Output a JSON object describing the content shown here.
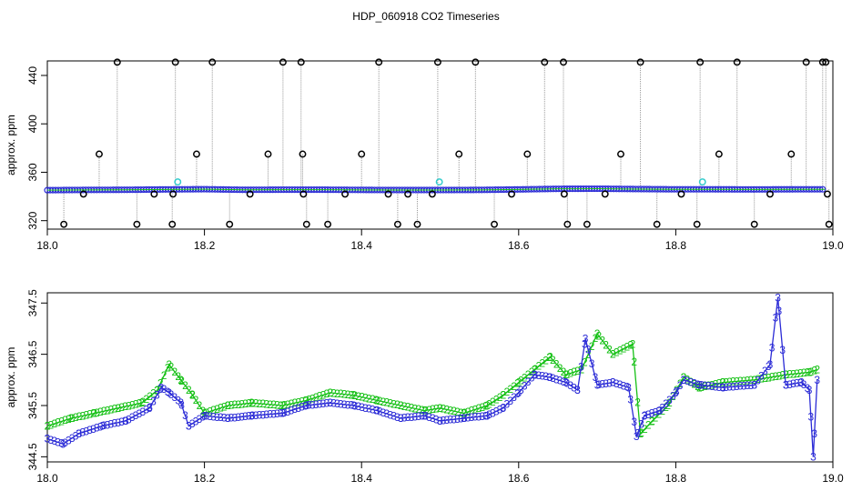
{
  "title": "HDP_060918  CO2 Timeseries",
  "colors": {
    "outlier": "#000000",
    "series1": "#2b2bd6",
    "series2": "#15c015",
    "flagged": "#33cccc",
    "gap_line": "#999999"
  },
  "chart_data": [
    {
      "type": "scatter",
      "title": "HDP_060918  CO2 Timeseries",
      "ylabel": "approx. ppm",
      "xlim": [
        18.0,
        19.0
      ],
      "ylim": [
        313,
        452
      ],
      "x_ticks": [
        "18.0",
        "18.2",
        "18.4",
        "18.6",
        "18.8",
        "19.0"
      ],
      "y_ticks": [
        "320",
        "360",
        "400",
        "440"
      ],
      "baseline": {
        "name": "",
        "x": [
          18.0,
          18.05,
          18.1,
          18.15,
          18.2,
          18.25,
          18.3,
          18.35,
          18.4,
          18.45,
          18.5,
          18.55,
          18.6,
          18.65,
          18.7,
          18.75,
          18.8,
          18.85,
          18.9,
          18.95,
          18.99
        ],
        "y": [
          345.2,
          345.4,
          345.5,
          345.8,
          346.0,
          345.5,
          345.6,
          345.6,
          345.4,
          345.3,
          345.3,
          345.4,
          345.8,
          346.3,
          346.4,
          346.1,
          345.9,
          345.9,
          345.8,
          345.9,
          345.9
        ]
      },
      "high_outliers": [
        18.089,
        18.163,
        18.21,
        18.3,
        18.323,
        18.422,
        18.497,
        18.545,
        18.633,
        18.657,
        18.755,
        18.831,
        18.878,
        18.966,
        18.987,
        18.991
      ],
      "high_value": 451,
      "low_outliers": [
        18.021,
        18.114,
        18.159,
        18.232,
        18.33,
        18.357,
        18.446,
        18.471,
        18.569,
        18.662,
        18.687,
        18.776,
        18.827,
        18.9,
        18.995
      ],
      "low_value": 317,
      "mid_outliers": [
        18.066,
        18.19,
        18.281,
        18.325,
        18.4,
        18.524,
        18.611,
        18.73,
        18.855,
        18.947
      ],
      "mid_value": 375,
      "dip_outliers": [
        18.046,
        18.136,
        18.16,
        18.258,
        18.326,
        18.379,
        18.434,
        18.459,
        18.49,
        18.591,
        18.658,
        18.71,
        18.807,
        18.92,
        18.993
      ],
      "dip_value": 342,
      "flagged_points": [
        {
          "x": 18.166,
          "y": 352
        },
        {
          "x": 18.499,
          "y": 352
        },
        {
          "x": 18.834,
          "y": 352
        }
      ]
    },
    {
      "type": "line",
      "ylabel": "approx. ppm",
      "xlim": [
        18.0,
        19.0
      ],
      "ylim": [
        344.4,
        347.7
      ],
      "x_ticks": [
        "18.0",
        "18.2",
        "18.4",
        "18.6",
        "18.8",
        "19.0"
      ],
      "y_ticks": [
        "344.5",
        "345.5",
        "346.5",
        "347.5"
      ],
      "series": [
        {
          "name": "2",
          "marker": "2",
          "x": [
            18.0,
            18.03,
            18.06,
            18.09,
            18.12,
            18.14,
            18.155,
            18.17,
            18.185,
            18.2,
            18.23,
            18.26,
            18.3,
            18.33,
            18.36,
            18.39,
            18.42,
            18.45,
            18.48,
            18.5,
            18.53,
            18.56,
            18.58,
            18.6,
            18.62,
            18.64,
            18.66,
            18.68,
            18.7,
            18.72,
            18.745,
            18.755,
            18.77,
            18.79,
            18.81,
            18.83,
            18.86,
            18.9,
            18.94,
            18.97,
            18.98
          ],
          "y": [
            345.1,
            345.25,
            345.35,
            345.45,
            345.55,
            345.8,
            346.3,
            346.0,
            345.7,
            345.35,
            345.5,
            345.55,
            345.5,
            345.6,
            345.75,
            345.7,
            345.6,
            345.5,
            345.4,
            345.45,
            345.35,
            345.5,
            345.7,
            345.95,
            346.2,
            346.45,
            346.1,
            346.2,
            346.9,
            346.5,
            346.7,
            344.95,
            345.2,
            345.5,
            346.05,
            345.85,
            345.95,
            346.0,
            346.1,
            346.15,
            346.2
          ]
        },
        {
          "name": "3",
          "marker": "3",
          "x": [
            18.0,
            18.02,
            18.04,
            18.07,
            18.1,
            18.13,
            18.145,
            18.155,
            18.17,
            18.18,
            18.2,
            18.23,
            18.26,
            18.3,
            18.33,
            18.36,
            18.39,
            18.42,
            18.45,
            18.48,
            18.5,
            18.53,
            18.56,
            18.58,
            18.6,
            18.62,
            18.64,
            18.66,
            18.675,
            18.685,
            18.7,
            18.72,
            18.74,
            18.75,
            18.76,
            18.78,
            18.8,
            18.81,
            18.83,
            18.86,
            18.9,
            18.92,
            18.93,
            18.94,
            18.96,
            18.97,
            18.975,
            18.98
          ],
          "y": [
            344.85,
            344.75,
            344.95,
            345.1,
            345.2,
            345.45,
            345.85,
            345.75,
            345.55,
            345.1,
            345.3,
            345.25,
            345.3,
            345.35,
            345.5,
            345.55,
            345.5,
            345.4,
            345.25,
            345.3,
            345.2,
            345.25,
            345.3,
            345.45,
            345.75,
            346.1,
            346.05,
            345.95,
            345.8,
            346.8,
            345.9,
            345.95,
            345.85,
            344.9,
            345.3,
            345.4,
            345.75,
            346.0,
            345.9,
            345.85,
            345.9,
            346.3,
            347.6,
            345.9,
            345.95,
            345.8,
            344.5,
            346.0
          ]
        }
      ]
    }
  ]
}
